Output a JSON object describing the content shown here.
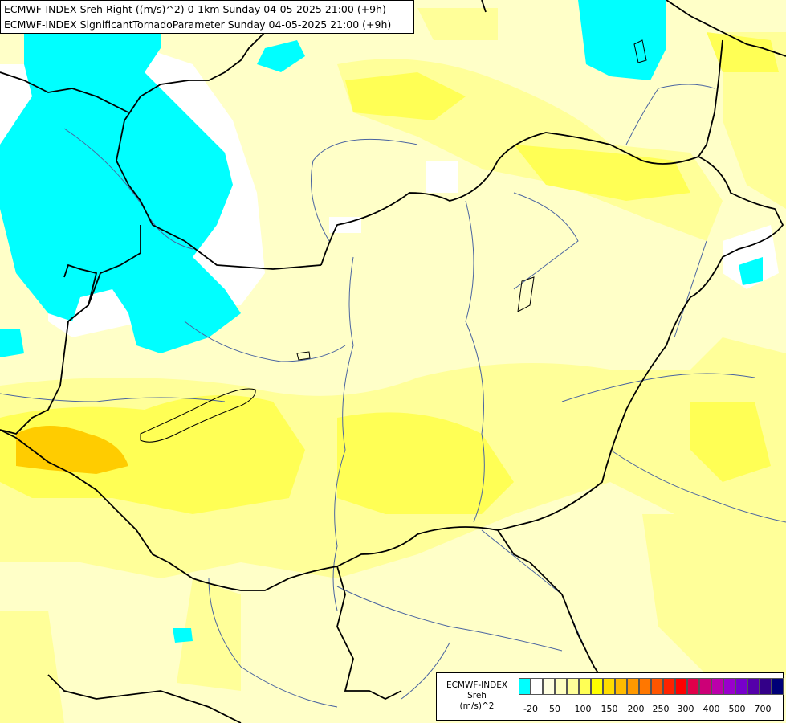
{
  "header": {
    "line1": "ECMWF-INDEX Sreh Right ((m/s)^2) 0-1km Sunday 04-05-2025 21:00 (+9h)",
    "line2": "ECMWF-INDEX SignificantTornadoParameter Sunday 04-05-2025 21:00 (+9h)"
  },
  "legend": {
    "title_line1": "ECMWF-INDEX",
    "title_line2": "Sreh",
    "title_line3": "(m/s)^2",
    "colors": [
      "#00ffff",
      "#ffffff",
      "#ffffe0",
      "#ffffc0",
      "#ffff99",
      "#ffff55",
      "#ffff00",
      "#ffdd00",
      "#ffbb00",
      "#ff9900",
      "#ff7700",
      "#ff5500",
      "#ff2200",
      "#ff0000",
      "#e0004a",
      "#cc0077",
      "#bb00aa",
      "#9900cc",
      "#7700cc",
      "#5500aa",
      "#330088",
      "#000077"
    ],
    "tick_labels": [
      "-20",
      "50",
      "100",
      "150",
      "200",
      "250",
      "300",
      "400",
      "500",
      "700"
    ]
  },
  "colors": {
    "cyan": "#00ffff",
    "pale_yellow": "#ffffc8",
    "yellow_light": "#ffff99",
    "yellow": "#ffff55",
    "orange_light": "#ffcc00",
    "border": "#000000",
    "river": "#4a64a0"
  }
}
